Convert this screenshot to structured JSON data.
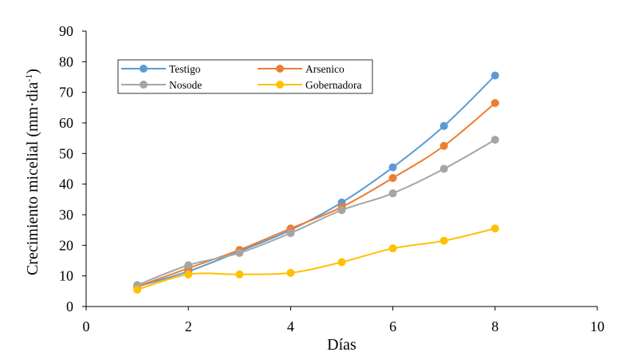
{
  "chart_data": {
    "type": "scatter",
    "xlabel": "Días",
    "ylabel_main": "Crecimiento micelial (mm·dia",
    "ylabel_sup": "-1",
    "ylabel_end": ")",
    "xlim": [
      0,
      10
    ],
    "ylim": [
      0,
      90
    ],
    "x_ticks": [
      0,
      2,
      4,
      6,
      8,
      10
    ],
    "y_ticks": [
      0,
      10,
      20,
      30,
      40,
      50,
      60,
      70,
      80,
      90
    ],
    "grid": false,
    "legend_position": "top-left",
    "series": [
      {
        "name": "Testigo",
        "color": "#5b9bd5",
        "x": [
          1,
          2,
          3,
          4,
          5,
          6,
          7,
          8
        ],
        "y": [
          6.5,
          11.5,
          18.0,
          25.0,
          34.0,
          45.5,
          59.0,
          75.5
        ]
      },
      {
        "name": "Arsenico",
        "color": "#ed7d31",
        "x": [
          1,
          2,
          3,
          4,
          5,
          6,
          7,
          8
        ],
        "y": [
          6.5,
          12.5,
          18.5,
          25.5,
          32.5,
          42.0,
          52.5,
          66.5
        ]
      },
      {
        "name": "Nosode",
        "color": "#a5a5a5",
        "x": [
          1,
          2,
          3,
          4,
          5,
          6,
          7,
          8
        ],
        "y": [
          7.0,
          13.5,
          17.5,
          24.0,
          31.5,
          37.0,
          45.0,
          54.5
        ]
      },
      {
        "name": "Gobernadora",
        "color": "#ffc000",
        "x": [
          1,
          2,
          3,
          4,
          5,
          6,
          7,
          8
        ],
        "y": [
          5.5,
          10.5,
          10.5,
          11.0,
          14.5,
          19.0,
          21.5,
          25.5
        ]
      }
    ]
  }
}
